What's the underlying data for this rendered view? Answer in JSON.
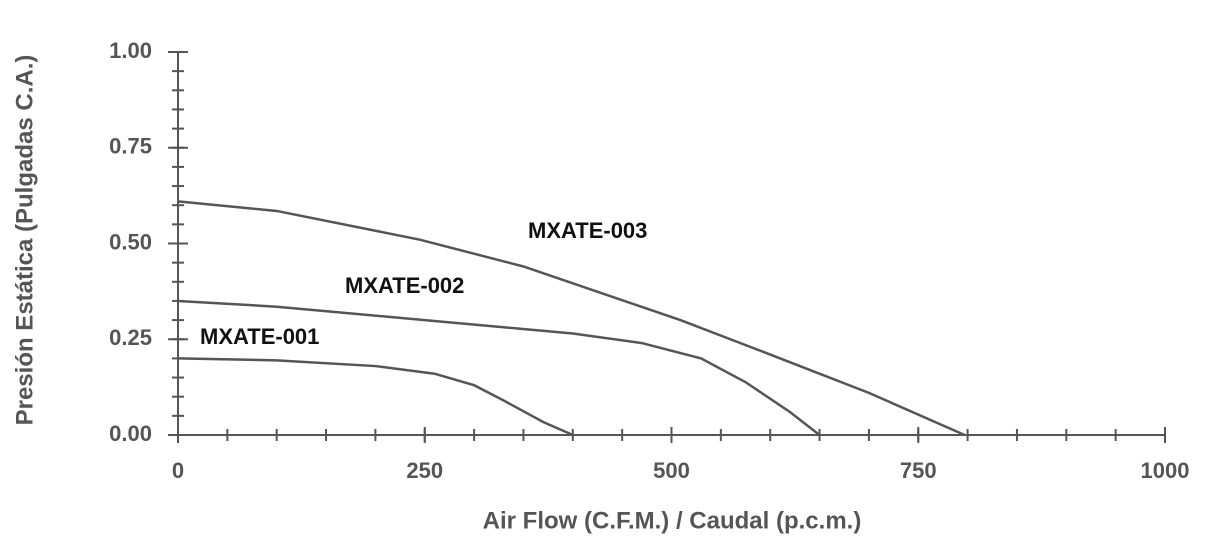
{
  "chart_data": {
    "type": "line",
    "xlabel": "Air Flow (C.F.M.) / Caudal (p.c.m.)",
    "ylabel": "Presión Estática (Pulgadas C.A.)",
    "xlim": [
      0,
      1000
    ],
    "xticks": [
      0,
      250,
      500,
      750,
      1000
    ],
    "ylim": [
      0,
      1
    ],
    "yticks": [
      {
        "value": 0,
        "label": "0.00"
      },
      {
        "value": 0.25,
        "label": "0.25"
      },
      {
        "value": 0.5,
        "label": "0.50"
      },
      {
        "value": 0.75,
        "label": "0.75"
      },
      {
        "value": 1,
        "label": "1.00"
      }
    ],
    "xminorticks": [
      0,
      50,
      100,
      150,
      200,
      250,
      300,
      350,
      400,
      450,
      500,
      550,
      600,
      650,
      700,
      750,
      800,
      850,
      900,
      950,
      1000
    ],
    "yminorticks": [
      0,
      0.05,
      0.1,
      0.15,
      0.2,
      0.25,
      0.3,
      0.35,
      0.4,
      0.45,
      0.5,
      0.55,
      0.6,
      0.65,
      0.7,
      0.75,
      0.8,
      0.85,
      0.9,
      0.95,
      1
    ],
    "color": "#555555",
    "series": [
      {
        "name": "MXATE-001",
        "color": "#555555",
        "x": [
          0,
          100,
          200,
          260,
          300,
          330,
          370,
          400
        ],
        "values": [
          0.2,
          0.195,
          0.18,
          0.16,
          0.13,
          0.09,
          0.034,
          0
        ]
      },
      {
        "name": "MXATE-002",
        "color": "#555555",
        "x": [
          0,
          100,
          250,
          400,
          470,
          530,
          575,
          620,
          650
        ],
        "values": [
          0.35,
          0.335,
          0.3,
          0.265,
          0.24,
          0.2,
          0.138,
          0.06,
          0
        ]
      },
      {
        "name": "MXATE-003",
        "color": "#555555",
        "x": [
          0,
          100,
          245,
          350,
          509,
          590,
          700,
          797
        ],
        "values": [
          0.61,
          0.585,
          0.51,
          0.44,
          0.3,
          0.22,
          0.11,
          0
        ]
      }
    ]
  }
}
